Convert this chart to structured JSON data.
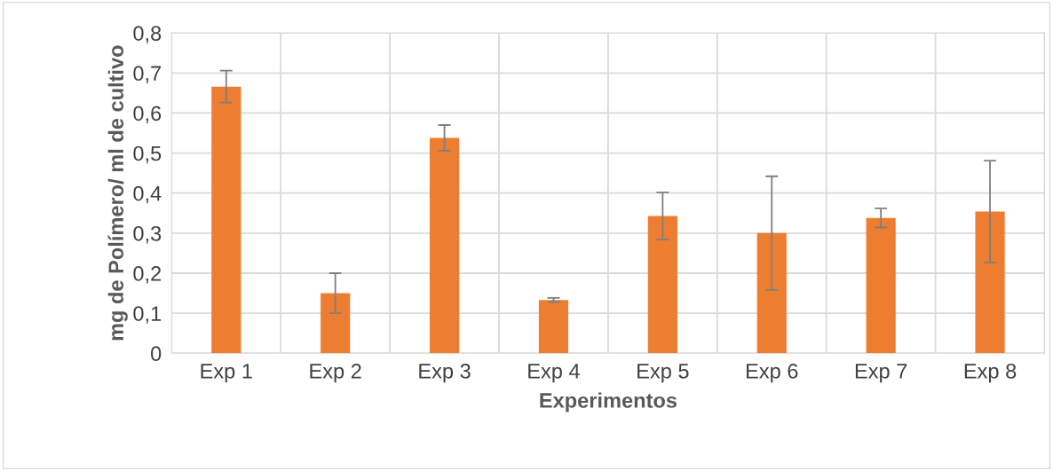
{
  "chart_data": {
    "type": "bar",
    "xlabel": "Experimentos",
    "ylabel": "mg de Polímero/ ml de cultivo",
    "categories": [
      "Exp 1",
      "Exp 2",
      "Exp 3",
      "Exp 4",
      "Exp 5",
      "Exp 6",
      "Exp 7",
      "Exp 8"
    ],
    "values": [
      0.666,
      0.15,
      0.538,
      0.133,
      0.343,
      0.3,
      0.338,
      0.354
    ],
    "errors": [
      0.04,
      0.05,
      0.032,
      0.005,
      0.059,
      0.142,
      0.024,
      0.127
    ],
    "color": "#ed7d31",
    "ylim": [
      0,
      0.8
    ],
    "yticks": [
      {
        "value": 0,
        "label": "0"
      },
      {
        "value": 0.1,
        "label": "0,1"
      },
      {
        "value": 0.2,
        "label": "0,2"
      },
      {
        "value": 0.3,
        "label": "0,3"
      },
      {
        "value": 0.4,
        "label": "0,4"
      },
      {
        "value": 0.5,
        "label": "0,5"
      },
      {
        "value": 0.6,
        "label": "0,6"
      },
      {
        "value": 0.7,
        "label": "0,7"
      },
      {
        "value": 0.8,
        "label": "0,8"
      }
    ],
    "grid": true
  }
}
